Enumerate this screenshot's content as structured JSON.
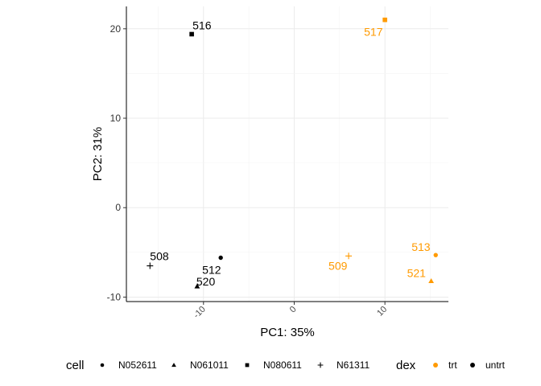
{
  "chart_data": {
    "type": "scatter",
    "title": "",
    "xlabel": "PC1: 35%",
    "ylabel": "PC2: 31%",
    "xlim": [
      -18.5,
      17
    ],
    "ylim": [
      -10.5,
      22.5
    ],
    "x_ticks": [
      -10,
      0,
      10
    ],
    "y_ticks": [
      -10,
      0,
      10,
      20
    ],
    "grid": true,
    "legend_position": "bottom",
    "colors": {
      "trt": "#FF9A00",
      "untrt": "#000000"
    },
    "shape_names": {
      "N052611": "circle",
      "N061011": "triangle",
      "N080611": "square",
      "N61311": "plus"
    },
    "points": [
      {
        "label": "516",
        "x": -11.3,
        "y": 19.4,
        "cell": "N080611",
        "dex": "untrt"
      },
      {
        "label": "517",
        "x": 10.0,
        "y": 21.0,
        "cell": "N080611",
        "dex": "trt"
      },
      {
        "label": "508",
        "x": -15.9,
        "y": -6.5,
        "cell": "N61311",
        "dex": "untrt"
      },
      {
        "label": "512",
        "x": -8.1,
        "y": -5.6,
        "cell": "N052611",
        "dex": "untrt"
      },
      {
        "label": "520",
        "x": -10.7,
        "y": -8.8,
        "cell": "N061011",
        "dex": "untrt"
      },
      {
        "label": "509",
        "x": 6.0,
        "y": -5.4,
        "cell": "N61311",
        "dex": "trt"
      },
      {
        "label": "513",
        "x": 15.6,
        "y": -5.3,
        "cell": "N052611",
        "dex": "trt"
      },
      {
        "label": "521",
        "x": 15.1,
        "y": -8.2,
        "cell": "N061011",
        "dex": "trt"
      }
    ],
    "legend": {
      "cell_title": "cell",
      "cell_entries": [
        {
          "label": "N052611",
          "shape": "circle"
        },
        {
          "label": "N061011",
          "shape": "triangle"
        },
        {
          "label": "N080611",
          "shape": "square"
        },
        {
          "label": "N61311",
          "shape": "plus"
        }
      ],
      "dex_title": "dex",
      "dex_entries": [
        {
          "label": "trt",
          "color": "#FF9A00"
        },
        {
          "label": "untrt",
          "color": "#000000"
        }
      ]
    }
  }
}
